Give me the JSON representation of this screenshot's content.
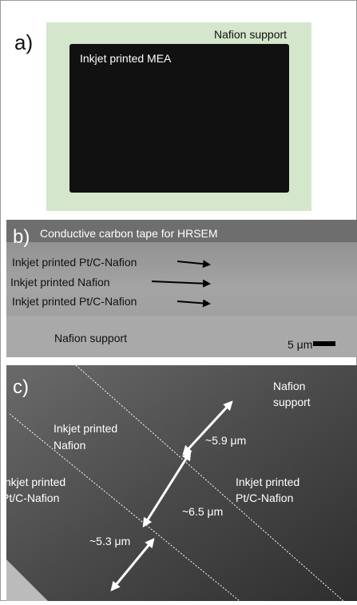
{
  "panel_a": {
    "label": "a)",
    "support": "Nafion support",
    "mea": "Inkjet printed MEA"
  },
  "panel_b": {
    "label": "b)",
    "tape": "Conductive carbon tape for HRSEM",
    "layers": [
      "Inkjet printed Pt/C-Nafion",
      "Inkjet printed Nafion",
      "Inkjet printed Pt/C-Nafion"
    ],
    "support": "Nafion  support",
    "scale": "5 μm"
  },
  "panel_c": {
    "label": "c)",
    "support": [
      "Nafion",
      "support"
    ],
    "nafion": [
      "Inkjet printed",
      "Nafion"
    ],
    "ptc_right": [
      "Inkjet printed",
      "Pt/C-Nafion"
    ],
    "ptc_left": [
      "Inkjet printed",
      "Pt/C-Nafion"
    ],
    "thickness": [
      "~5.9 μm",
      "~6.5 μm",
      "~5.3 μm"
    ]
  }
}
